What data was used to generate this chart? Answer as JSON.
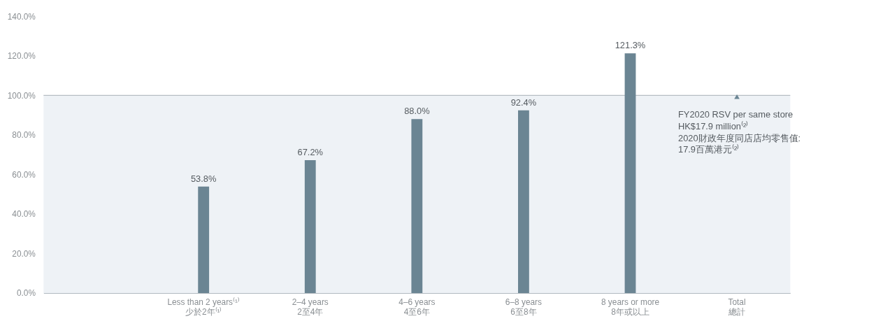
{
  "chart_data": {
    "type": "bar",
    "categories": [
      null,
      "Less than 2 years⁽¹⁾\n少於2年⁽¹⁾",
      "2–4 years\n2至4年",
      "4–6 years\n4至6年",
      "6–8 years\n6至8年",
      "8 years or more\n8年或以上",
      "Total\n總計"
    ],
    "series": [
      {
        "color": "#6b8593",
        "values": [
          null,
          53.8,
          67.2,
          88.0,
          92.4,
          121.3,
          null
        ],
        "value_labels": [
          null,
          "53.8%",
          "67.2%",
          "88.0%",
          "92.4%",
          "121.3%",
          null
        ]
      }
    ],
    "ylim": [
      0,
      140
    ],
    "yticks": [
      {
        "value": 0,
        "label": "0.0%"
      },
      {
        "value": 20,
        "label": "20.0%"
      },
      {
        "value": 40,
        "label": "40.0%"
      },
      {
        "value": 60,
        "label": "60.0%"
      },
      {
        "value": 80,
        "label": "80.0%"
      },
      {
        "value": 100,
        "label": "100.0%"
      },
      {
        "value": 120,
        "label": "120.0%"
      },
      {
        "value": 140,
        "label": "140.0%"
      }
    ],
    "bands": [
      {
        "axis": "y",
        "from": 0,
        "to": 100,
        "color": "#eef2f6"
      }
    ],
    "ref_lines": [
      {
        "axis": "y",
        "value": 100,
        "color": "#a5afb6"
      }
    ],
    "annotations": [
      {
        "text": "FY2020 RSV per same store\nHK$17.9 million⁽²⁾\n2020財政年度同店店均零售值:\n17.9百萬港元⁽²⁾",
        "x": "Total\n總計",
        "y": 100
      }
    ],
    "grid": false,
    "legend": false
  }
}
